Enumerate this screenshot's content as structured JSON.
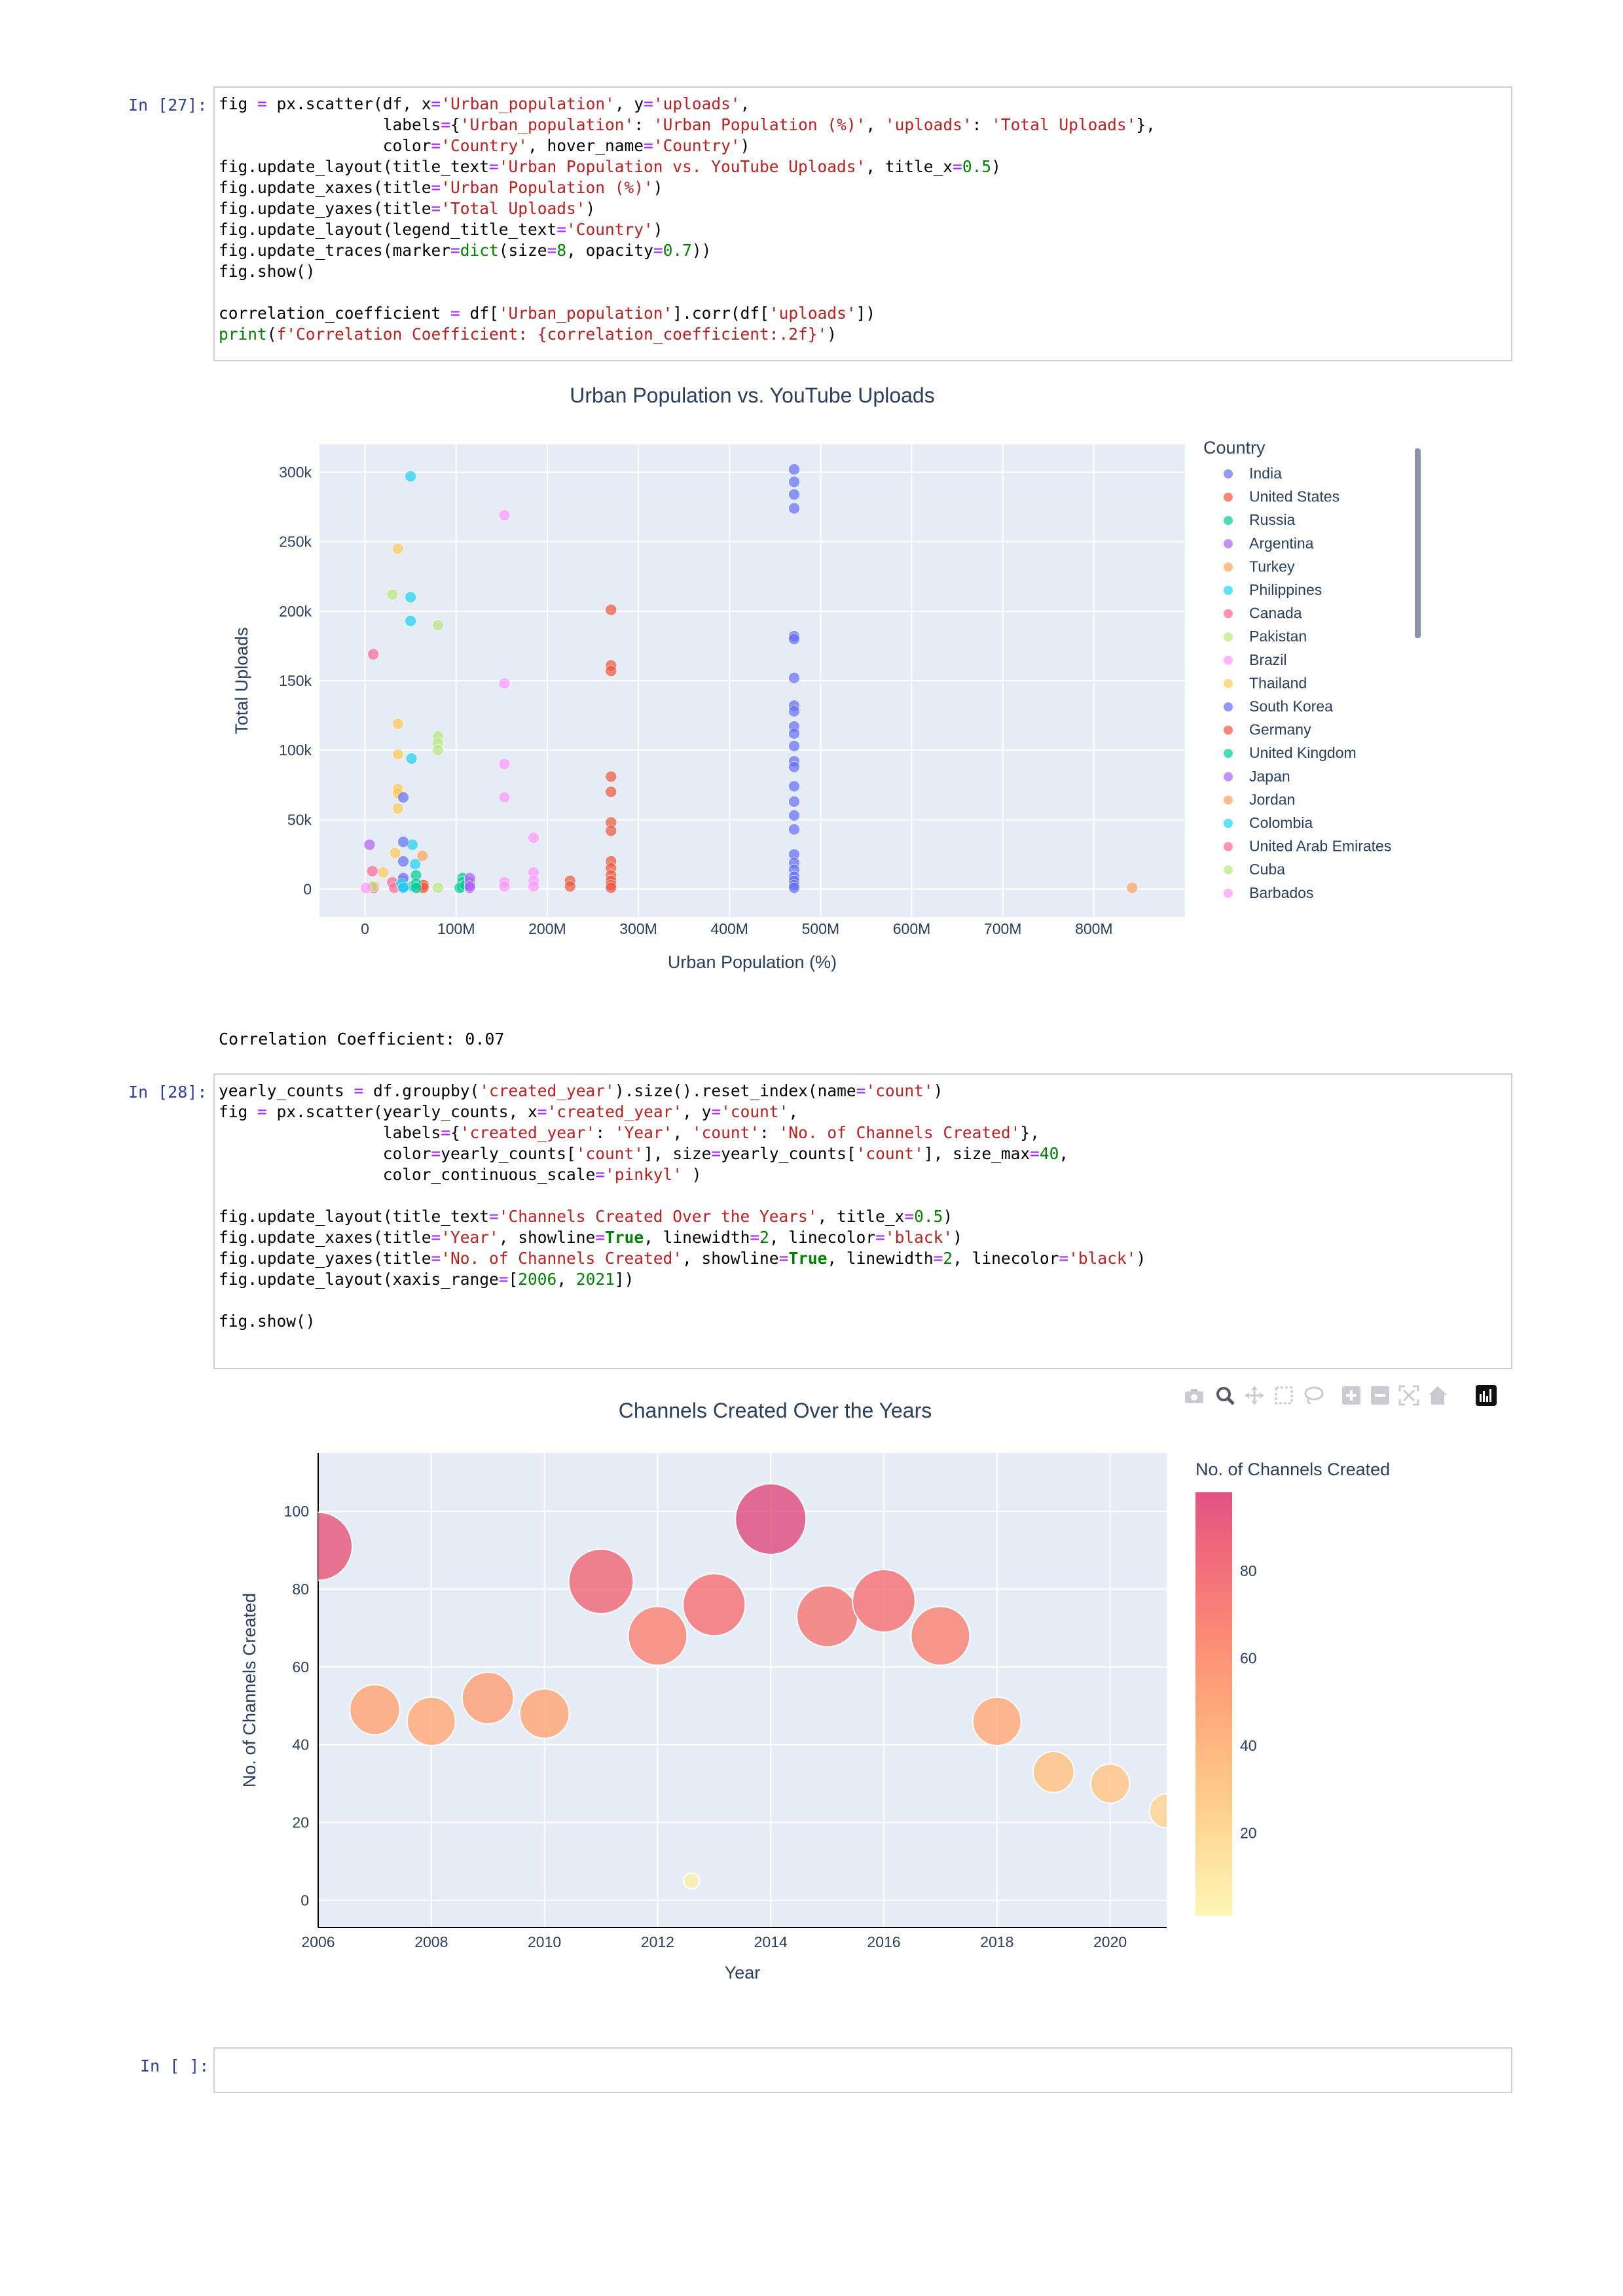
{
  "cells": [
    {
      "prompt": "In [27]:",
      "code_lines": [
        "fig = px.scatter(df, x='Urban_population', y='uploads',",
        "                 labels={'Urban_population': 'Urban Population (%)', 'uploads': 'Total Uploads'},",
        "                 color='Country', hover_name='Country')",
        "fig.update_layout(title_text='Urban Population vs. YouTube Uploads', title_x=0.5)",
        "fig.update_xaxes(title='Urban Population (%)')",
        "fig.update_yaxes(title='Total Uploads')",
        "fig.update_layout(legend_title_text='Country')",
        "fig.update_traces(marker=dict(size=8, opacity=0.7))",
        "fig.show()",
        "",
        "correlation_coefficient = df['Urban_population'].corr(df['uploads'])",
        "print(f'Correlation Coefficient: {correlation_coefficient:.2f}')"
      ],
      "output_text": "Correlation Coefficient: 0.07"
    },
    {
      "prompt": "In [28]:",
      "code_lines": [
        "yearly_counts = df.groupby('created_year').size().reset_index(name='count')",
        "fig = px.scatter(yearly_counts, x='created_year', y='count',",
        "                 labels={'created_year': 'Year', 'count': 'No. of Channels Created'},",
        "                 color=yearly_counts['count'], size=yearly_counts['count'], size_max=40,",
        "                 color_continuous_scale='pinkyl' )",
        "",
        "fig.update_layout(title_text='Channels Created Over the Years', title_x=0.5)",
        "fig.update_xaxes(title='Year', showline=True, linewidth=2, linecolor='black')",
        "fig.update_yaxes(title='No. of Channels Created', showline=True, linewidth=2, linecolor='black')",
        "fig.update_layout(xaxis_range=[2006, 2021])",
        "",
        "fig.show()"
      ]
    },
    {
      "prompt": "In [ ]:"
    }
  ],
  "modebar": [
    "camera-icon",
    "zoom-icon",
    "pan-icon",
    "box-select-icon",
    "lasso-select-icon",
    "zoom-in-icon",
    "zoom-out-icon",
    "autoscale-icon",
    "reset-axes-icon",
    "plotly-logo-icon"
  ],
  "chart_data": [
    {
      "type": "scatter",
      "title": "Urban Population vs. YouTube Uploads",
      "xlabel": "Urban Population (%)",
      "ylabel": "Total Uploads",
      "xlim": [
        -50000000,
        900000000
      ],
      "ylim": [
        -20000,
        320000
      ],
      "x_ticks": [
        0,
        100000000,
        200000000,
        300000000,
        400000000,
        500000000,
        600000000,
        700000000,
        800000000
      ],
      "x_tick_labels": [
        "0",
        "100M",
        "200M",
        "300M",
        "400M",
        "500M",
        "600M",
        "700M",
        "800M"
      ],
      "y_ticks": [
        0,
        50000,
        100000,
        150000,
        200000,
        250000,
        300000
      ],
      "y_tick_labels": [
        "0",
        "50k",
        "100k",
        "150k",
        "200k",
        "250k",
        "300k"
      ],
      "grid": true,
      "legend_title": "Country",
      "legend_position": "right",
      "marker_opacity": 0.7,
      "series": [
        {
          "name": "India",
          "color": "#636efa",
          "points": [
            [
              471000000,
              302000
            ],
            [
              471000000,
              293000
            ],
            [
              471000000,
              284000
            ],
            [
              471000000,
              274000
            ],
            [
              471000000,
              182000
            ],
            [
              471000000,
              180000
            ],
            [
              471000000,
              152000
            ],
            [
              471000000,
              132000
            ],
            [
              471000000,
              128000
            ],
            [
              471000000,
              117000
            ],
            [
              471000000,
              112000
            ],
            [
              471000000,
              103000
            ],
            [
              471000000,
              92000
            ],
            [
              471000000,
              88000
            ],
            [
              471000000,
              74000
            ],
            [
              471000000,
              63000
            ],
            [
              471000000,
              53000
            ],
            [
              471000000,
              43000
            ],
            [
              471000000,
              25000
            ],
            [
              471000000,
              19000
            ],
            [
              471000000,
              14000
            ],
            [
              471000000,
              9000
            ],
            [
              471000000,
              6000
            ],
            [
              471000000,
              3000
            ],
            [
              471000000,
              1000
            ]
          ]
        },
        {
          "name": "United States",
          "color": "#ef553b",
          "points": [
            [
              270000000,
              201000
            ],
            [
              270000000,
              161000
            ],
            [
              270000000,
              157000
            ],
            [
              270000000,
              81000
            ],
            [
              270000000,
              70000
            ],
            [
              270000000,
              48000
            ],
            [
              270000000,
              42000
            ],
            [
              270000000,
              20000
            ],
            [
              270000000,
              15000
            ],
            [
              270000000,
              10000
            ],
            [
              270000000,
              6000
            ],
            [
              270000000,
              3000
            ],
            [
              270000000,
              1000
            ],
            [
              225000000,
              6000
            ],
            [
              225000000,
              2000
            ]
          ]
        },
        {
          "name": "Russia",
          "color": "#00cc96",
          "points": [
            [
              107000000,
              8000
            ],
            [
              107000000,
              5000
            ],
            [
              107000000,
              2000
            ],
            [
              104000000,
              1000
            ],
            [
              110000000,
              3000
            ]
          ]
        },
        {
          "name": "Argentina",
          "color": "#ab63fa",
          "points": [
            [
              41000000,
              6000
            ],
            [
              42000000,
              2000
            ],
            [
              115000000,
              5000
            ],
            [
              115000000,
              1000
            ]
          ]
        },
        {
          "name": "Turkey",
          "color": "#ffa15a",
          "points": [
            [
              63000000,
              24000
            ],
            [
              65000000,
              3000
            ],
            [
              60000000,
              1000
            ]
          ]
        },
        {
          "name": "Philippines",
          "color": "#19d3f3",
          "points": [
            [
              50000000,
              297000
            ],
            [
              50000000,
              210000
            ],
            [
              50000000,
              193000
            ],
            [
              51000000,
              94000
            ],
            [
              52000000,
              32000
            ],
            [
              55000000,
              18000
            ],
            [
              52000000,
              2000
            ]
          ]
        },
        {
          "name": "Canada",
          "color": "#ff6692",
          "points": [
            [
              9000000,
              169000
            ],
            [
              30000000,
              5000
            ],
            [
              32000000,
              1000
            ]
          ]
        },
        {
          "name": "Pakistan",
          "color": "#b6e880",
          "points": [
            [
              30000000,
              212000
            ],
            [
              80000000,
              190000
            ],
            [
              80000000,
              110000
            ],
            [
              80000000,
              105000
            ],
            [
              80000000,
              100000
            ],
            [
              80000000,
              1000
            ]
          ]
        },
        {
          "name": "Brazil",
          "color": "#ff97ff",
          "points": [
            [
              153000000,
              269000
            ],
            [
              153000000,
              148000
            ],
            [
              153000000,
              90000
            ],
            [
              153000000,
              66000
            ],
            [
              153000000,
              5000
            ],
            [
              153000000,
              2000
            ],
            [
              185000000,
              37000
            ],
            [
              185000000,
              12000
            ],
            [
              185000000,
              6000
            ],
            [
              185000000,
              2000
            ]
          ]
        },
        {
          "name": "Thailand",
          "color": "#fecb52",
          "points": [
            [
              36000000,
              245000
            ],
            [
              36000000,
              119000
            ],
            [
              36000000,
              97000
            ],
            [
              36000000,
              72000
            ],
            [
              36000000,
              69000
            ],
            [
              36000000,
              58000
            ],
            [
              33000000,
              26000
            ],
            [
              20000000,
              12000
            ]
          ]
        },
        {
          "name": "South Korea",
          "color": "#636efa",
          "points": [
            [
              42000000,
              66000
            ],
            [
              42000000,
              34000
            ],
            [
              42000000,
              20000
            ],
            [
              42000000,
              8000
            ],
            [
              42000000,
              2000
            ]
          ]
        },
        {
          "name": "Germany",
          "color": "#ef553b",
          "points": [
            [
              64000000,
              3000
            ],
            [
              64000000,
              1000
            ]
          ]
        },
        {
          "name": "United Kingdom",
          "color": "#00cc96",
          "points": [
            [
              56000000,
              10000
            ],
            [
              56000000,
              4000
            ],
            [
              56000000,
              1000
            ]
          ]
        },
        {
          "name": "Japan",
          "color": "#ab63fa",
          "points": [
            [
              5000000,
              32000
            ],
            [
              115000000,
              8000
            ],
            [
              115000000,
              2000
            ]
          ]
        },
        {
          "name": "Jordan",
          "color": "#ffa15a",
          "points": [
            [
              842000000,
              1000
            ],
            [
              10000000,
              2000
            ]
          ]
        },
        {
          "name": "Colombia",
          "color": "#19d3f3",
          "points": [
            [
              40000000,
              4000
            ],
            [
              42000000,
              1000
            ]
          ]
        },
        {
          "name": "United Arab Emirates",
          "color": "#ff6692",
          "points": [
            [
              8000000,
              13000
            ],
            [
              9000000,
              1000
            ]
          ]
        },
        {
          "name": "Cuba",
          "color": "#b6e880",
          "points": [
            [
              8000000,
              2000
            ]
          ]
        },
        {
          "name": "Barbados",
          "color": "#ff97ff",
          "points": [
            [
              1000000,
              1000
            ]
          ]
        }
      ]
    },
    {
      "type": "scatter",
      "title": "Channels Created Over the Years",
      "xlabel": "Year",
      "ylabel": "No. of Channels Created",
      "xlim": [
        2006,
        2021
      ],
      "ylim": [
        -7,
        115
      ],
      "x_ticks": [
        2006,
        2008,
        2010,
        2012,
        2014,
        2016,
        2018,
        2020
      ],
      "y_ticks": [
        0,
        20,
        40,
        60,
        80,
        100
      ],
      "grid": true,
      "colorbar_title": "No. of Channels Created",
      "colorbar_ticks": [
        20,
        40,
        60,
        80
      ],
      "colorbar_range": [
        1,
        98
      ],
      "colorscale": "pinkyl",
      "colorbar_colors": [
        "#fef6b5",
        "#ffdd9a",
        "#ffc285",
        "#ffa679",
        "#fa8a76",
        "#f16d7a",
        "#e15383"
      ],
      "size_max": 40,
      "x": [
        2006,
        2007,
        2008,
        2009,
        2010,
        2011,
        2012,
        2012.6,
        2013,
        2014,
        2015,
        2016,
        2017,
        2018,
        2019,
        2020,
        2021
      ],
      "values": [
        91,
        49,
        46,
        52,
        48,
        82,
        68,
        5,
        76,
        98,
        73,
        77,
        68,
        46,
        33,
        30,
        23
      ]
    }
  ]
}
